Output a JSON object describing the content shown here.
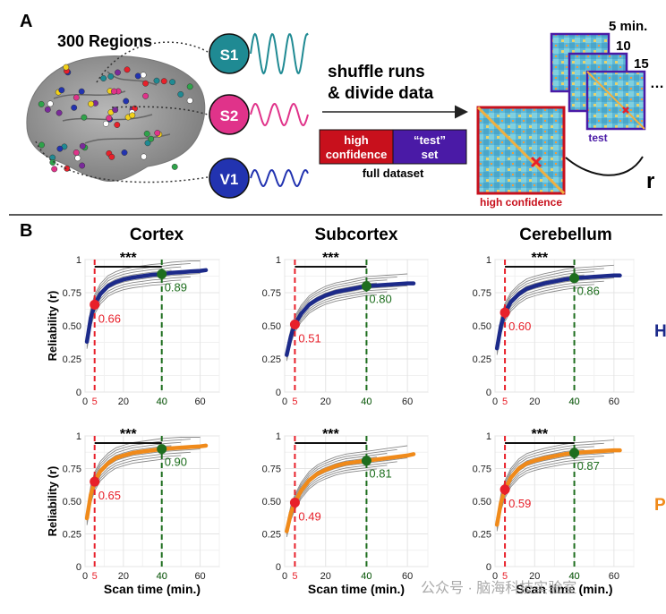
{
  "panel_a": {
    "label": "A",
    "regions_title": "300 Regions",
    "nodes": [
      "S1",
      "S2",
      "V1"
    ],
    "shuffle_line1": "shuffle runs",
    "shuffle_line2": "& divide data",
    "split": {
      "high_line1": "high",
      "high_line2": "confidence",
      "test_line1": "“test”",
      "test_line2": "set",
      "caption": "full dataset"
    },
    "matrix_labels": {
      "high": "high confidence",
      "test": "test"
    },
    "times": [
      "5 min.",
      "10",
      "15"
    ],
    "ellipsis": "…",
    "r_label": "r"
  },
  "panel_b": {
    "label": "B",
    "columns": [
      "Cortex",
      "Subcortex",
      "Cerebellum"
    ],
    "row_labels": [
      "H",
      "P"
    ],
    "ylabel": "Reliability (r)",
    "xlabel": "Scan time (min.)",
    "sig": "***",
    "yticks": [
      "0",
      "0.25",
      "0.50",
      "0.75",
      "1"
    ],
    "xticks": [
      "0",
      "20",
      "40",
      "60"
    ],
    "xmark_low": "5",
    "xmark_high": "40"
  },
  "watermark": "公众号 · 脑海科技实验室",
  "chart_data": [
    {
      "type": "line",
      "title": "Cortex",
      "row": "H",
      "xlabel": "Scan time (min.)",
      "ylabel": "Reliability (r)",
      "xlim": [
        0,
        70
      ],
      "ylim": [
        0,
        1
      ],
      "series": [
        {
          "x": [
            1,
            3,
            5,
            8,
            12,
            16,
            20,
            25,
            30,
            35,
            40,
            45,
            50,
            55,
            60,
            63
          ],
          "y": [
            0.38,
            0.56,
            0.66,
            0.74,
            0.8,
            0.83,
            0.85,
            0.865,
            0.875,
            0.885,
            0.89,
            0.9,
            0.905,
            0.91,
            0.915,
            0.92
          ]
        }
      ],
      "annotations": [
        {
          "x": 5,
          "y": 0.66,
          "label": "0.66"
        },
        {
          "x": 40,
          "y": 0.89,
          "label": "0.89"
        }
      ]
    },
    {
      "type": "line",
      "title": "Subcortex",
      "row": "H",
      "xlabel": "Scan time (min.)",
      "ylabel": "Reliability (r)",
      "xlim": [
        0,
        70
      ],
      "ylim": [
        0,
        1
      ],
      "series": [
        {
          "x": [
            1,
            3,
            5,
            8,
            12,
            16,
            20,
            25,
            30,
            35,
            40,
            45,
            50,
            55,
            60,
            63
          ],
          "y": [
            0.28,
            0.42,
            0.51,
            0.59,
            0.66,
            0.7,
            0.73,
            0.755,
            0.77,
            0.785,
            0.8,
            0.805,
            0.81,
            0.815,
            0.82,
            0.82
          ]
        }
      ],
      "annotations": [
        {
          "x": 5,
          "y": 0.51,
          "label": "0.51"
        },
        {
          "x": 40,
          "y": 0.8,
          "label": "0.80"
        }
      ]
    },
    {
      "type": "line",
      "title": "Cerebellum",
      "row": "H",
      "xlabel": "Scan time (min.)",
      "ylabel": "Reliability (r)",
      "xlim": [
        0,
        70
      ],
      "ylim": [
        0,
        1
      ],
      "series": [
        {
          "x": [
            1,
            3,
            5,
            8,
            12,
            16,
            20,
            25,
            30,
            35,
            40,
            45,
            50,
            55,
            60,
            63
          ],
          "y": [
            0.33,
            0.5,
            0.6,
            0.68,
            0.74,
            0.78,
            0.8,
            0.82,
            0.835,
            0.85,
            0.86,
            0.865,
            0.87,
            0.875,
            0.88,
            0.88
          ]
        }
      ],
      "annotations": [
        {
          "x": 5,
          "y": 0.6,
          "label": "0.60"
        },
        {
          "x": 40,
          "y": 0.86,
          "label": "0.86"
        }
      ]
    },
    {
      "type": "line",
      "title": "Cortex",
      "row": "P",
      "xlabel": "Scan time (min.)",
      "ylabel": "Reliability (r)",
      "xlim": [
        0,
        70
      ],
      "ylim": [
        0,
        1
      ],
      "series": [
        {
          "x": [
            1,
            3,
            5,
            8,
            12,
            16,
            20,
            25,
            30,
            35,
            40,
            45,
            50,
            55,
            60,
            63
          ],
          "y": [
            0.37,
            0.55,
            0.65,
            0.73,
            0.79,
            0.83,
            0.85,
            0.87,
            0.88,
            0.89,
            0.9,
            0.905,
            0.91,
            0.915,
            0.92,
            0.925
          ]
        }
      ],
      "annotations": [
        {
          "x": 5,
          "y": 0.65,
          "label": "0.65"
        },
        {
          "x": 40,
          "y": 0.9,
          "label": "0.90"
        }
      ]
    },
    {
      "type": "line",
      "title": "Subcortex",
      "row": "P",
      "xlabel": "Scan time (min.)",
      "ylabel": "Reliability (r)",
      "xlim": [
        0,
        70
      ],
      "ylim": [
        0,
        1
      ],
      "series": [
        {
          "x": [
            1,
            3,
            5,
            8,
            12,
            16,
            20,
            25,
            30,
            35,
            40,
            45,
            50,
            55,
            60,
            63
          ],
          "y": [
            0.27,
            0.41,
            0.49,
            0.58,
            0.66,
            0.71,
            0.74,
            0.77,
            0.79,
            0.8,
            0.81,
            0.82,
            0.83,
            0.84,
            0.85,
            0.86
          ]
        }
      ],
      "annotations": [
        {
          "x": 5,
          "y": 0.49,
          "label": "0.49"
        },
        {
          "x": 40,
          "y": 0.81,
          "label": "0.81"
        }
      ]
    },
    {
      "type": "line",
      "title": "Cerebellum",
      "row": "P",
      "xlabel": "Scan time (min.)",
      "ylabel": "Reliability (r)",
      "xlim": [
        0,
        70
      ],
      "ylim": [
        0,
        1
      ],
      "series": [
        {
          "x": [
            1,
            3,
            5,
            8,
            12,
            16,
            20,
            25,
            30,
            35,
            40,
            45,
            50,
            55,
            60,
            63
          ],
          "y": [
            0.32,
            0.49,
            0.59,
            0.68,
            0.75,
            0.79,
            0.81,
            0.83,
            0.845,
            0.86,
            0.87,
            0.875,
            0.88,
            0.885,
            0.89,
            0.89
          ]
        }
      ],
      "annotations": [
        {
          "x": 5,
          "y": 0.59,
          "label": "0.59"
        },
        {
          "x": 40,
          "y": 0.87,
          "label": "0.87"
        }
      ]
    }
  ],
  "colors": {
    "h_series": "#1c2a8a",
    "p_series": "#f08a1a",
    "low_marker": "#e8202a",
    "high_marker": "#1e6e1e",
    "high_box": "#c8101c",
    "test_box": "#4a1aa6",
    "s1": "#1f8a93",
    "s2": "#e0338a",
    "v1": "#2233b0"
  }
}
